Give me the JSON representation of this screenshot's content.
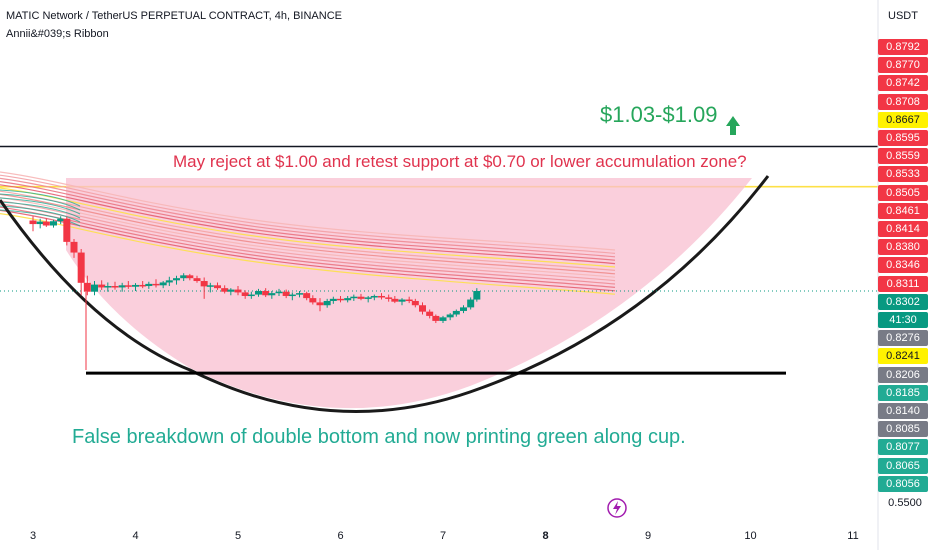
{
  "header": {
    "title": "MATIC Network / TetherUS PERPETUAL CONTRACT, 4h, BINANCE",
    "indicator": "Annii&#039;s Ribbon"
  },
  "axis": {
    "currency": "USDT"
  },
  "price_scale": [
    {
      "label": "0.8792",
      "color": "#f23645"
    },
    {
      "label": "0.8770",
      "color": "#f23645"
    },
    {
      "label": "0.8742",
      "color": "#f23645"
    },
    {
      "label": "0.8708",
      "color": "#f23645"
    },
    {
      "label": "0.8667",
      "color": "#fff200"
    },
    {
      "label": "0.8595",
      "color": "#f23645"
    },
    {
      "label": "0.8559",
      "color": "#f23645"
    },
    {
      "label": "0.8533",
      "color": "#f23645"
    },
    {
      "label": "0.8505",
      "color": "#f23645"
    },
    {
      "label": "0.8461",
      "color": "#f23645"
    },
    {
      "label": "0.8414",
      "color": "#f23645"
    },
    {
      "label": "0.8380",
      "color": "#f23645"
    },
    {
      "label": "0.8346",
      "color": "#f23645"
    },
    {
      "label": "0.8311",
      "color": "#f23645"
    },
    {
      "label": "0.8302",
      "color": "#089981"
    },
    {
      "label": "41:30",
      "color": "#089981"
    },
    {
      "label": "0.8276",
      "color": "#787b86"
    },
    {
      "label": "0.8241",
      "color": "#fff200"
    },
    {
      "label": "0.8206",
      "color": "#787b86"
    },
    {
      "label": "0.8185",
      "color": "#22ab94"
    },
    {
      "label": "0.8140",
      "color": "#787b86"
    },
    {
      "label": "0.8085",
      "color": "#787b86"
    },
    {
      "label": "0.8077",
      "color": "#22ab94"
    },
    {
      "label": "0.8065",
      "color": "#22ab94"
    },
    {
      "label": "0.8056",
      "color": "#22ab94"
    }
  ],
  "price_plain": "0.5500",
  "chart_data": {
    "type": "candlestick",
    "x_ticks": [
      {
        "label": "3",
        "bold": false
      },
      {
        "label": "4",
        "bold": false
      },
      {
        "label": "5",
        "bold": false
      },
      {
        "label": "6",
        "bold": false
      },
      {
        "label": "7",
        "bold": false
      },
      {
        "label": "8",
        "bold": true
      },
      {
        "label": "9",
        "bold": false
      },
      {
        "label": "10",
        "bold": false
      },
      {
        "label": "11",
        "bold": false
      }
    ],
    "candles": [
      {
        "x": 3.0,
        "o": 0.85,
        "h": 0.8512,
        "l": 0.847,
        "c": 0.849
      },
      {
        "x": 3.07,
        "o": 0.849,
        "h": 0.8505,
        "l": 0.8478,
        "c": 0.8497
      },
      {
        "x": 3.13,
        "o": 0.8497,
        "h": 0.8506,
        "l": 0.8482,
        "c": 0.8486
      },
      {
        "x": 3.2,
        "o": 0.8486,
        "h": 0.8502,
        "l": 0.848,
        "c": 0.8498
      },
      {
        "x": 3.27,
        "o": 0.8498,
        "h": 0.8512,
        "l": 0.849,
        "c": 0.8505
      },
      {
        "x": 3.33,
        "o": 0.8505,
        "h": 0.851,
        "l": 0.843,
        "c": 0.844
      },
      {
        "x": 3.4,
        "o": 0.844,
        "h": 0.8448,
        "l": 0.8395,
        "c": 0.841
      },
      {
        "x": 3.47,
        "o": 0.841,
        "h": 0.842,
        "l": 0.829,
        "c": 0.8325
      },
      {
        "x": 3.53,
        "o": 0.8325,
        "h": 0.8345,
        "l": 0.829,
        "c": 0.83
      },
      {
        "x": 3.6,
        "o": 0.83,
        "h": 0.833,
        "l": 0.829,
        "c": 0.832
      },
      {
        "x": 3.67,
        "o": 0.832,
        "h": 0.8332,
        "l": 0.8305,
        "c": 0.8312
      },
      {
        "x": 3.73,
        "o": 0.8312,
        "h": 0.8326,
        "l": 0.83,
        "c": 0.8316
      },
      {
        "x": 3.8,
        "o": 0.8316,
        "h": 0.8328,
        "l": 0.8306,
        "c": 0.8312
      },
      {
        "x": 3.87,
        "o": 0.8312,
        "h": 0.8325,
        "l": 0.83,
        "c": 0.8318
      },
      {
        "x": 3.93,
        "o": 0.8318,
        "h": 0.833,
        "l": 0.8308,
        "c": 0.8314
      },
      {
        "x": 4.0,
        "o": 0.8314,
        "h": 0.8324,
        "l": 0.8302,
        "c": 0.8319
      },
      {
        "x": 4.07,
        "o": 0.8319,
        "h": 0.833,
        "l": 0.831,
        "c": 0.8316
      },
      {
        "x": 4.13,
        "o": 0.8316,
        "h": 0.8328,
        "l": 0.8308,
        "c": 0.8322
      },
      {
        "x": 4.2,
        "o": 0.8322,
        "h": 0.8335,
        "l": 0.8312,
        "c": 0.8318
      },
      {
        "x": 4.27,
        "o": 0.8318,
        "h": 0.833,
        "l": 0.831,
        "c": 0.8326
      },
      {
        "x": 4.33,
        "o": 0.8326,
        "h": 0.8342,
        "l": 0.8316,
        "c": 0.8332
      },
      {
        "x": 4.4,
        "o": 0.8332,
        "h": 0.8345,
        "l": 0.832,
        "c": 0.8338
      },
      {
        "x": 4.47,
        "o": 0.8338,
        "h": 0.8352,
        "l": 0.833,
        "c": 0.8346
      },
      {
        "x": 4.53,
        "o": 0.8346,
        "h": 0.835,
        "l": 0.8332,
        "c": 0.8338
      },
      {
        "x": 4.6,
        "o": 0.8338,
        "h": 0.8345,
        "l": 0.8325,
        "c": 0.833
      },
      {
        "x": 4.67,
        "o": 0.833,
        "h": 0.834,
        "l": 0.828,
        "c": 0.8315
      },
      {
        "x": 4.73,
        "o": 0.8315,
        "h": 0.8325,
        "l": 0.8298,
        "c": 0.8318
      },
      {
        "x": 4.8,
        "o": 0.8318,
        "h": 0.8326,
        "l": 0.8305,
        "c": 0.831
      },
      {
        "x": 4.87,
        "o": 0.831,
        "h": 0.8318,
        "l": 0.8295,
        "c": 0.83
      },
      {
        "x": 4.93,
        "o": 0.83,
        "h": 0.831,
        "l": 0.829,
        "c": 0.8306
      },
      {
        "x": 5.0,
        "o": 0.8306,
        "h": 0.8316,
        "l": 0.829,
        "c": 0.8298
      },
      {
        "x": 5.07,
        "o": 0.8298,
        "h": 0.8304,
        "l": 0.828,
        "c": 0.8288
      },
      {
        "x": 5.13,
        "o": 0.8288,
        "h": 0.83,
        "l": 0.828,
        "c": 0.8292
      },
      {
        "x": 5.2,
        "o": 0.8292,
        "h": 0.8308,
        "l": 0.8286,
        "c": 0.8302
      },
      {
        "x": 5.27,
        "o": 0.8302,
        "h": 0.831,
        "l": 0.8285,
        "c": 0.829
      },
      {
        "x": 5.33,
        "o": 0.829,
        "h": 0.8302,
        "l": 0.828,
        "c": 0.8296
      },
      {
        "x": 5.4,
        "o": 0.8296,
        "h": 0.8308,
        "l": 0.8288,
        "c": 0.83
      },
      {
        "x": 5.47,
        "o": 0.83,
        "h": 0.8306,
        "l": 0.8282,
        "c": 0.8288
      },
      {
        "x": 5.53,
        "o": 0.8288,
        "h": 0.8298,
        "l": 0.8276,
        "c": 0.8292
      },
      {
        "x": 5.6,
        "o": 0.8292,
        "h": 0.8302,
        "l": 0.8284,
        "c": 0.8296
      },
      {
        "x": 5.67,
        "o": 0.8296,
        "h": 0.83,
        "l": 0.8276,
        "c": 0.8282
      },
      {
        "x": 5.73,
        "o": 0.8282,
        "h": 0.829,
        "l": 0.8264,
        "c": 0.827
      },
      {
        "x": 5.8,
        "o": 0.827,
        "h": 0.8282,
        "l": 0.8245,
        "c": 0.8262
      },
      {
        "x": 5.87,
        "o": 0.8262,
        "h": 0.828,
        "l": 0.8255,
        "c": 0.8274
      },
      {
        "x": 5.93,
        "o": 0.8274,
        "h": 0.8286,
        "l": 0.8266,
        "c": 0.828
      },
      {
        "x": 6.0,
        "o": 0.828,
        "h": 0.8288,
        "l": 0.827,
        "c": 0.8276
      },
      {
        "x": 6.07,
        "o": 0.8276,
        "h": 0.8288,
        "l": 0.827,
        "c": 0.8282
      },
      {
        "x": 6.13,
        "o": 0.8282,
        "h": 0.8292,
        "l": 0.8274,
        "c": 0.8286
      },
      {
        "x": 6.2,
        "o": 0.8286,
        "h": 0.8294,
        "l": 0.8276,
        "c": 0.828
      },
      {
        "x": 6.27,
        "o": 0.828,
        "h": 0.8288,
        "l": 0.827,
        "c": 0.8284
      },
      {
        "x": 6.33,
        "o": 0.8284,
        "h": 0.8292,
        "l": 0.8276,
        "c": 0.8288
      },
      {
        "x": 6.4,
        "o": 0.8288,
        "h": 0.8296,
        "l": 0.8278,
        "c": 0.8284
      },
      {
        "x": 6.47,
        "o": 0.8284,
        "h": 0.8292,
        "l": 0.8272,
        "c": 0.828
      },
      {
        "x": 6.53,
        "o": 0.828,
        "h": 0.8288,
        "l": 0.8268,
        "c": 0.8272
      },
      {
        "x": 6.6,
        "o": 0.8272,
        "h": 0.8282,
        "l": 0.8262,
        "c": 0.8278
      },
      {
        "x": 6.67,
        "o": 0.8278,
        "h": 0.8286,
        "l": 0.8268,
        "c": 0.8274
      },
      {
        "x": 6.73,
        "o": 0.8274,
        "h": 0.828,
        "l": 0.8256,
        "c": 0.8262
      },
      {
        "x": 6.8,
        "o": 0.8262,
        "h": 0.827,
        "l": 0.8236,
        "c": 0.8244
      },
      {
        "x": 6.87,
        "o": 0.8244,
        "h": 0.825,
        "l": 0.8225,
        "c": 0.8232
      },
      {
        "x": 6.93,
        "o": 0.8232,
        "h": 0.8236,
        "l": 0.8212,
        "c": 0.8218
      },
      {
        "x": 7.0,
        "o": 0.8218,
        "h": 0.8232,
        "l": 0.8212,
        "c": 0.8228
      },
      {
        "x": 7.07,
        "o": 0.8228,
        "h": 0.824,
        "l": 0.822,
        "c": 0.8236
      },
      {
        "x": 7.13,
        "o": 0.8236,
        "h": 0.825,
        "l": 0.823,
        "c": 0.8246
      },
      {
        "x": 7.2,
        "o": 0.8246,
        "h": 0.8262,
        "l": 0.824,
        "c": 0.8256
      },
      {
        "x": 7.27,
        "o": 0.8256,
        "h": 0.8284,
        "l": 0.825,
        "c": 0.8278
      },
      {
        "x": 7.33,
        "o": 0.8278,
        "h": 0.831,
        "l": 0.8272,
        "c": 0.8302
      }
    ],
    "reference_lines": {
      "resistance_top": 0.8708,
      "resistance_yellow": 0.8595,
      "support": 0.8206
    }
  },
  "annotations": {
    "target": "$1.03-$1.09",
    "question": "May reject at $1.00 and retest support at $0.70 or lower accumulation zone?",
    "summary": "False breakdown of double bottom and now printing green along cup."
  },
  "colors": {
    "up": "#089981",
    "down": "#f23645",
    "target_green": "#26a65b",
    "question_red": "#e0334e",
    "summary_green": "#22ab94",
    "cup_fill": "#f8bfd0",
    "ribbon_yellow": "#fde047"
  }
}
